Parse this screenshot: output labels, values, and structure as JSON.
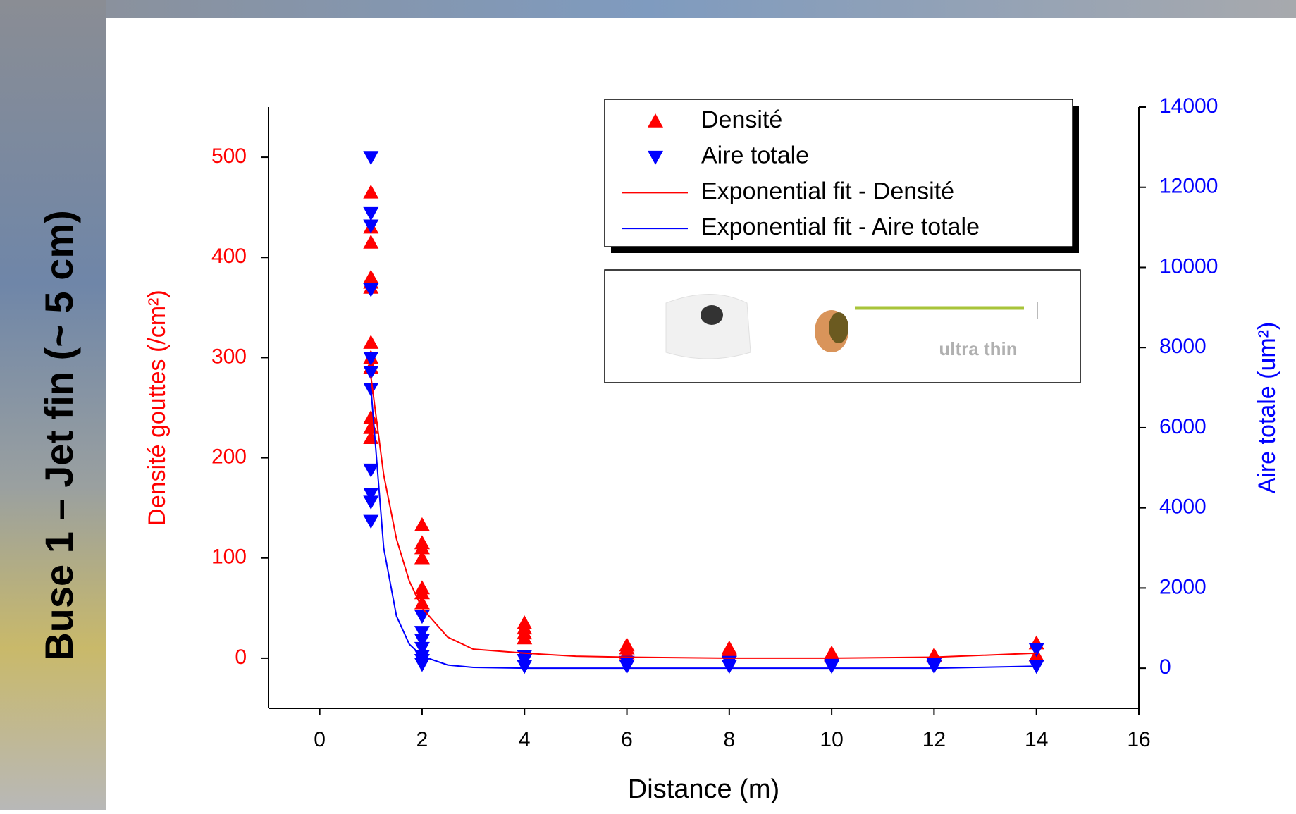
{
  "slide_title": "Buse 1 – Jet fin (~ 5 cm)",
  "inset_label": "ultra thin",
  "chart_data": {
    "type": "scatter",
    "x_label": "Distance (m)",
    "y_label": "Densité gouttes (/cm²)",
    "y2_label": "Aire totale (um²)",
    "xlim": [
      -1,
      16
    ],
    "xticks": [
      0,
      2,
      4,
      6,
      8,
      10,
      12,
      14,
      16
    ],
    "ylim": [
      -50,
      550
    ],
    "yticks": [
      0,
      100,
      200,
      300,
      400,
      500
    ],
    "y2lim": [
      -1000,
      14000
    ],
    "y2ticks": [
      0,
      2000,
      4000,
      6000,
      8000,
      10000,
      12000,
      14000
    ],
    "y_color": "#ff0000",
    "y2_color": "#0000ff",
    "legend": "top-right",
    "series": [
      {
        "name": "Densité",
        "color": "#ff0000",
        "marker": "triangle-up",
        "x": [
          1,
          1,
          1,
          1,
          1,
          1,
          1,
          1,
          1,
          1,
          1,
          1,
          2,
          2,
          2,
          2,
          2,
          2,
          2,
          4,
          4,
          4,
          4,
          6,
          6,
          6,
          8,
          8,
          10,
          10,
          12,
          12,
          14,
          14
        ],
        "values": [
          465,
          430,
          415,
          380,
          375,
          370,
          315,
          300,
          290,
          240,
          230,
          220,
          133,
          115,
          110,
          100,
          70,
          65,
          55,
          35,
          30,
          25,
          20,
          13,
          10,
          5,
          10,
          8,
          5,
          3,
          3,
          2,
          15,
          3
        ]
      },
      {
        "name": "Aire totale",
        "color": "#0000ff",
        "marker": "triangle-down",
        "axis": "y2",
        "x": [
          1,
          1,
          1,
          1,
          1,
          1,
          1,
          1,
          1,
          1,
          1,
          2,
          2,
          2,
          2,
          2,
          2,
          2,
          4,
          4,
          4,
          6,
          6,
          8,
          8,
          10,
          10,
          12,
          12,
          14,
          14
        ],
        "values": [
          12750,
          11350,
          11040,
          9450,
          7740,
          7390,
          6970,
          4950,
          4350,
          4150,
          3670,
          1300,
          900,
          700,
          500,
          300,
          200,
          100,
          300,
          200,
          50,
          150,
          50,
          150,
          50,
          100,
          50,
          100,
          50,
          470,
          50
        ]
      },
      {
        "name": "Exponential fit - Densité",
        "color": "#ff0000",
        "marker": "line",
        "x": [
          1,
          1.25,
          1.5,
          1.75,
          2,
          2.5,
          3,
          4,
          5,
          6,
          8,
          10,
          12,
          14
        ],
        "values": [
          281,
          183,
          119,
          77,
          50,
          21,
          9,
          5,
          2,
          1,
          0,
          0,
          1,
          5
        ]
      },
      {
        "name": "Exponential fit - Aire totale",
        "color": "#0000ff",
        "marker": "line",
        "axis": "y2",
        "x": [
          1,
          1.25,
          1.5,
          1.75,
          2,
          2.5,
          3,
          4,
          5,
          6,
          8,
          10,
          12,
          14
        ],
        "values": [
          7000,
          3000,
          1300,
          600,
          300,
          80,
          20,
          0,
          0,
          0,
          0,
          0,
          0,
          50
        ]
      }
    ]
  }
}
